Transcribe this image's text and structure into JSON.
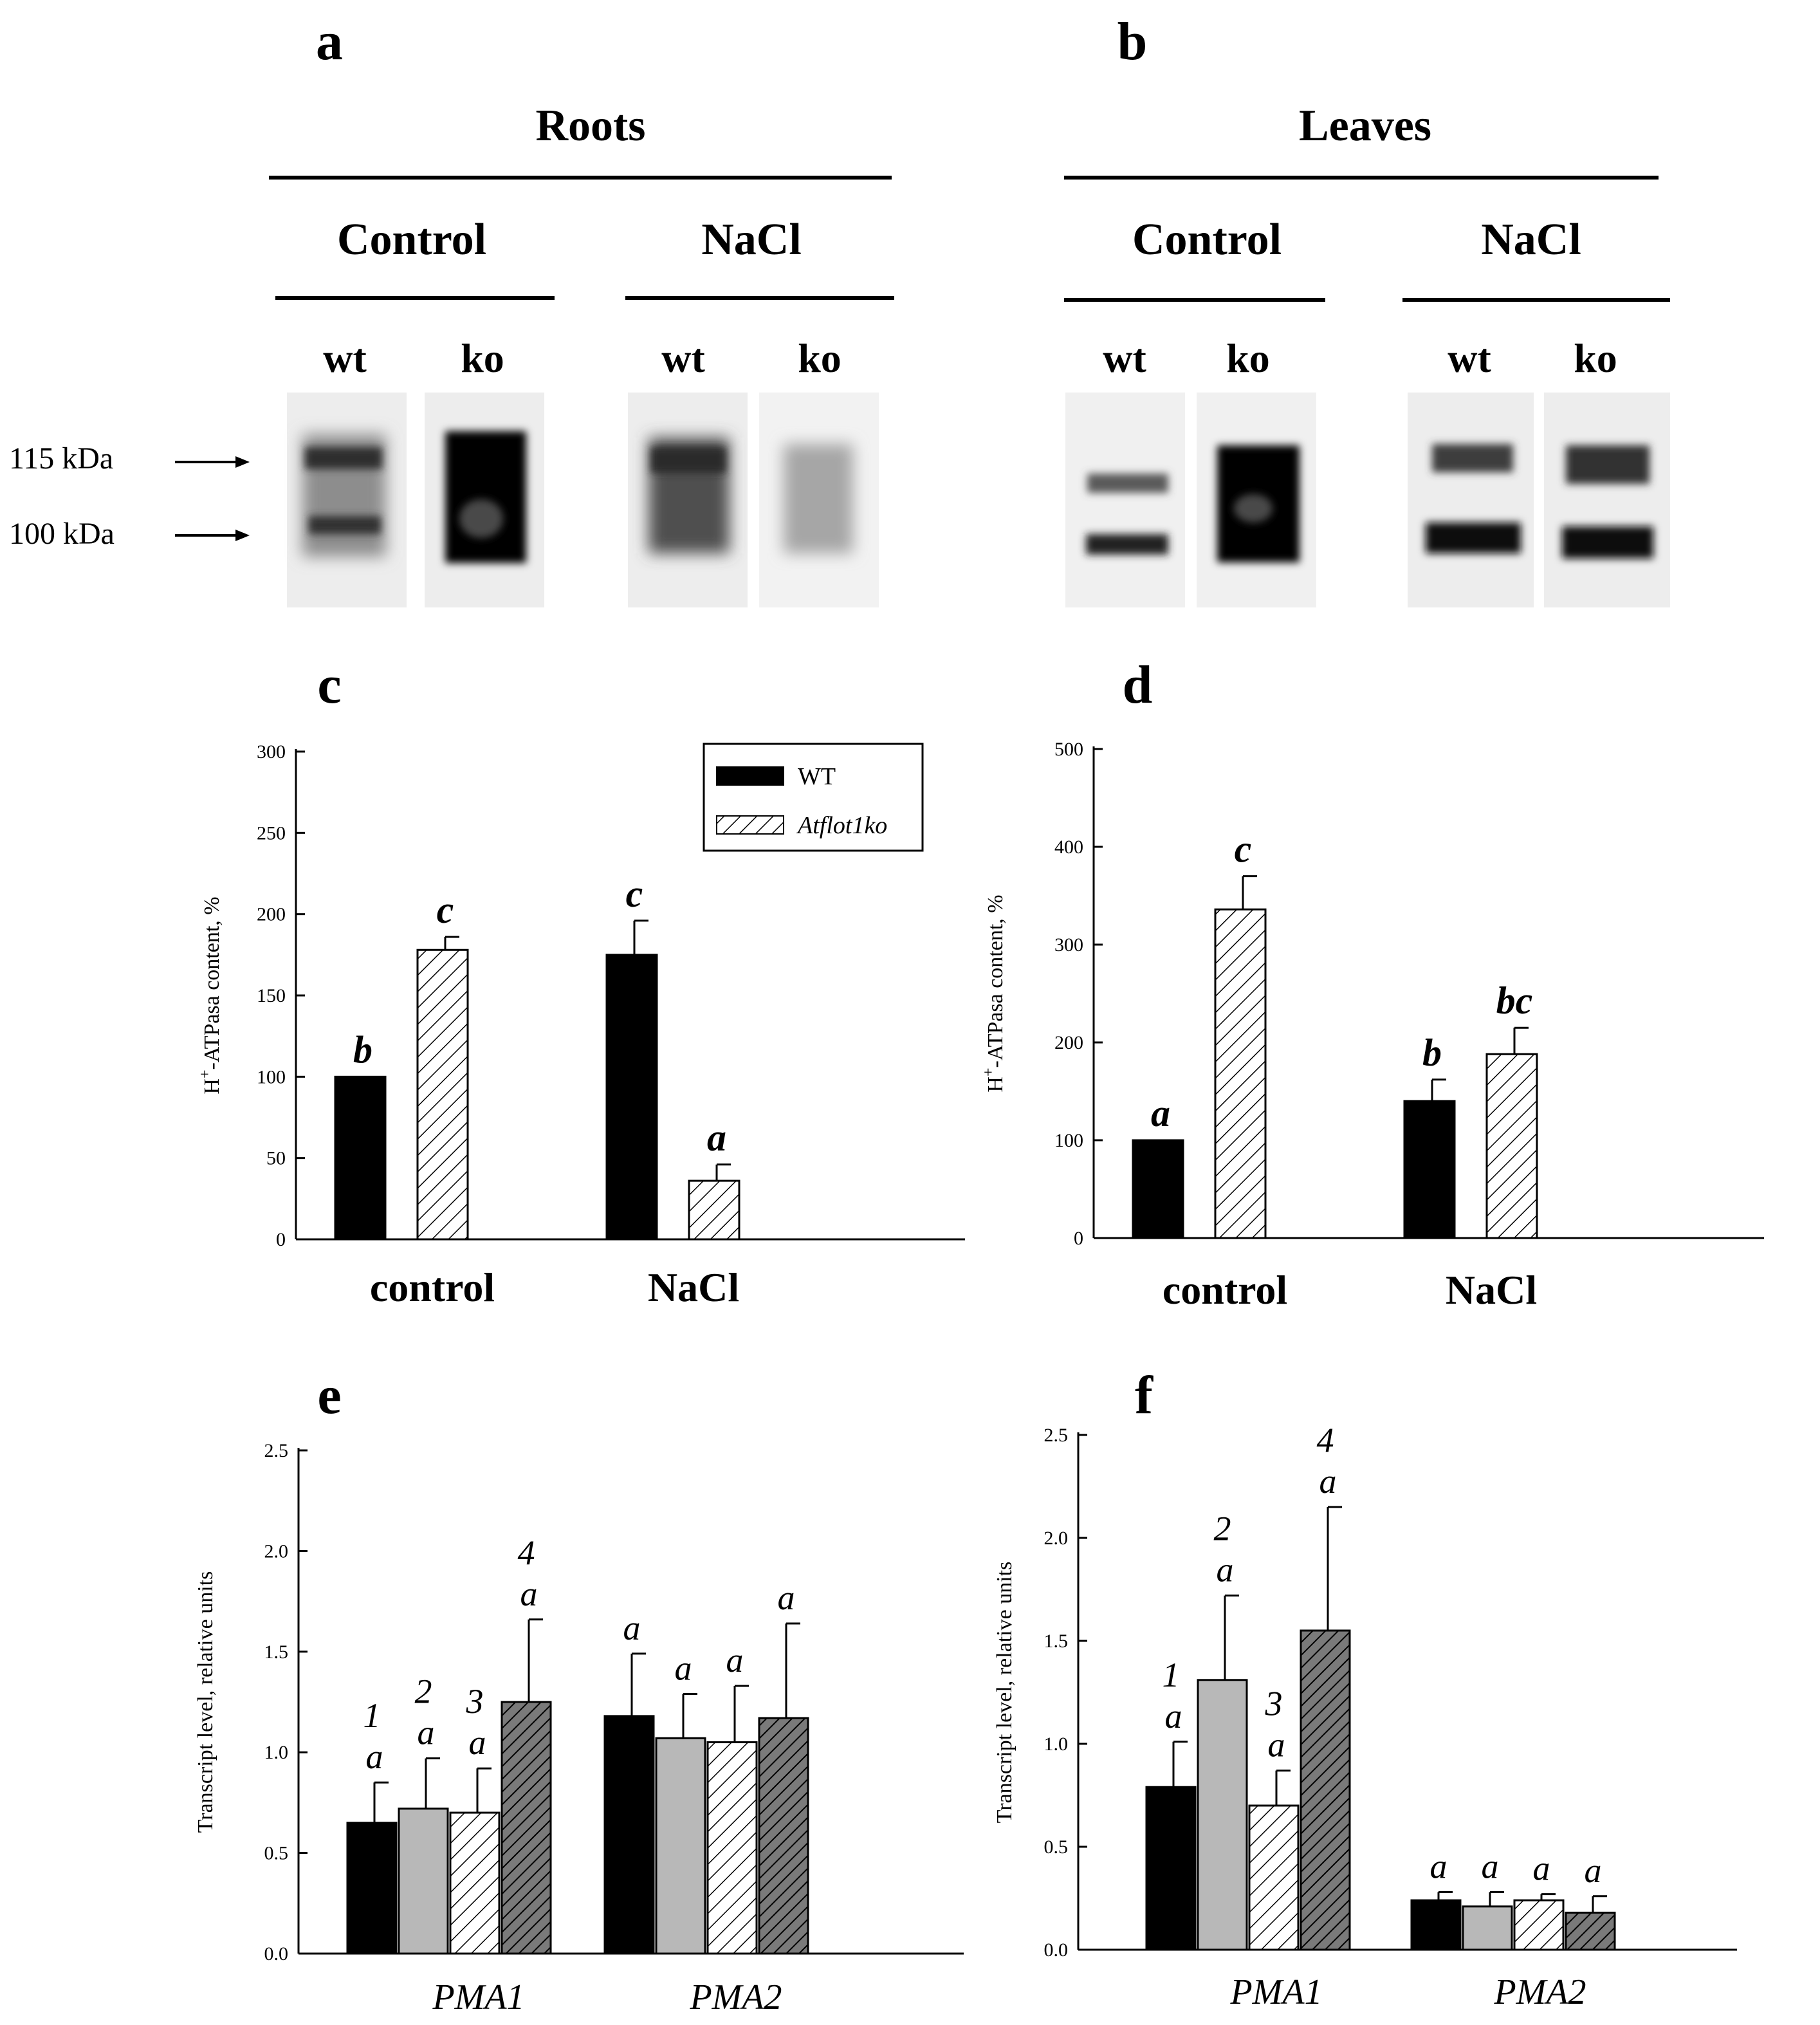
{
  "panels": {
    "a": "a",
    "b": "b",
    "c": "c",
    "d": "d",
    "e": "e",
    "f": "f"
  },
  "blots": {
    "roots_title": "Roots",
    "leaves_title": "Leaves",
    "control": "Control",
    "nacl": "NaCl",
    "wt": "wt",
    "ko": "ko",
    "marker_115": "115 kDa",
    "marker_100": "100 kDa"
  },
  "colors": {
    "wt": "#000000",
    "ko": "#ffffff",
    "gray": "#b8b8b8",
    "gray_ko": "#7a7a7a"
  },
  "chart_data": [
    {
      "panel": "c",
      "type": "bar",
      "categories": [
        "control",
        "NaCl"
      ],
      "ylabel": "H+-ATPasa content, %",
      "ylim": [
        0,
        300
      ],
      "yticks": [
        0,
        50,
        100,
        150,
        200,
        250,
        300
      ],
      "series": [
        {
          "name": "WT",
          "pattern": "solid-black",
          "values": [
            100,
            175
          ],
          "errors": [
            0,
            21
          ],
          "labels": [
            "b",
            "c"
          ]
        },
        {
          "name": "Atflot1ko",
          "pattern": "hatched",
          "values": [
            178,
            36
          ],
          "errors": [
            8,
            10
          ],
          "labels": [
            "c",
            "a"
          ]
        }
      ],
      "legend": "top-center"
    },
    {
      "panel": "d",
      "type": "bar",
      "categories": [
        "control",
        "NaCl"
      ],
      "ylabel": "H+-ATPasa content, %",
      "ylim": [
        0,
        500
      ],
      "yticks": [
        0,
        100,
        200,
        300,
        400,
        500
      ],
      "series": [
        {
          "pattern": "solid-black",
          "values": [
            100,
            140
          ],
          "errors": [
            0,
            22
          ],
          "labels": [
            "a",
            "b"
          ]
        },
        {
          "pattern": "hatched",
          "values": [
            336,
            188
          ],
          "errors": [
            34,
            27
          ],
          "labels": [
            "c",
            "bc"
          ]
        }
      ]
    },
    {
      "panel": "e",
      "type": "bar",
      "categories": [
        "PMA1",
        "PMA2"
      ],
      "ylabel": "Transcript level, relative units",
      "ylim": [
        0,
        2.5
      ],
      "yticks": [
        "0.0",
        "0.5",
        "1.0",
        "1.5",
        "2.0",
        "2.5"
      ],
      "series": [
        {
          "pattern": "solid-black",
          "values": [
            0.65,
            1.18
          ],
          "errors": [
            0.2,
            0.31
          ],
          "labels": [
            "a",
            "a"
          ],
          "numbers": [
            "1",
            ""
          ]
        },
        {
          "pattern": "solid-gray",
          "values": [
            0.72,
            1.07
          ],
          "errors": [
            0.25,
            0.22
          ],
          "labels": [
            "a",
            "a"
          ],
          "numbers": [
            "2",
            ""
          ]
        },
        {
          "pattern": "hatched",
          "values": [
            0.7,
            1.05
          ],
          "errors": [
            0.22,
            0.28
          ],
          "labels": [
            "a",
            "a"
          ],
          "numbers": [
            "3",
            ""
          ]
        },
        {
          "pattern": "hatched-gray",
          "values": [
            1.25,
            1.17
          ],
          "errors": [
            0.41,
            0.47
          ],
          "labels": [
            "a",
            "a"
          ],
          "numbers": [
            "4",
            ""
          ]
        }
      ]
    },
    {
      "panel": "f",
      "type": "bar",
      "categories": [
        "PMA1",
        "PMA2"
      ],
      "ylabel": "Transcript level, relative units",
      "ylim": [
        0,
        2.5
      ],
      "yticks": [
        "0.0",
        "0.5",
        "1.0",
        "1.5",
        "2.0",
        "2.5"
      ],
      "series": [
        {
          "pattern": "solid-black",
          "values": [
            0.79,
            0.24
          ],
          "errors": [
            0.22,
            0.04
          ],
          "labels": [
            "a",
            "a"
          ],
          "numbers": [
            "1",
            ""
          ]
        },
        {
          "pattern": "solid-gray",
          "values": [
            1.31,
            0.21
          ],
          "errors": [
            0.41,
            0.07
          ],
          "labels": [
            "a",
            "a"
          ],
          "numbers": [
            "2",
            ""
          ]
        },
        {
          "pattern": "hatched",
          "values": [
            0.7,
            0.24
          ],
          "errors": [
            0.17,
            0.03
          ],
          "labels": [
            "a",
            "a"
          ],
          "numbers": [
            "3",
            ""
          ]
        },
        {
          "pattern": "hatched-gray",
          "values": [
            1.55,
            0.18
          ],
          "errors": [
            0.6,
            0.08
          ],
          "labels": [
            "a",
            "a"
          ],
          "numbers": [
            "4",
            ""
          ]
        }
      ]
    }
  ]
}
